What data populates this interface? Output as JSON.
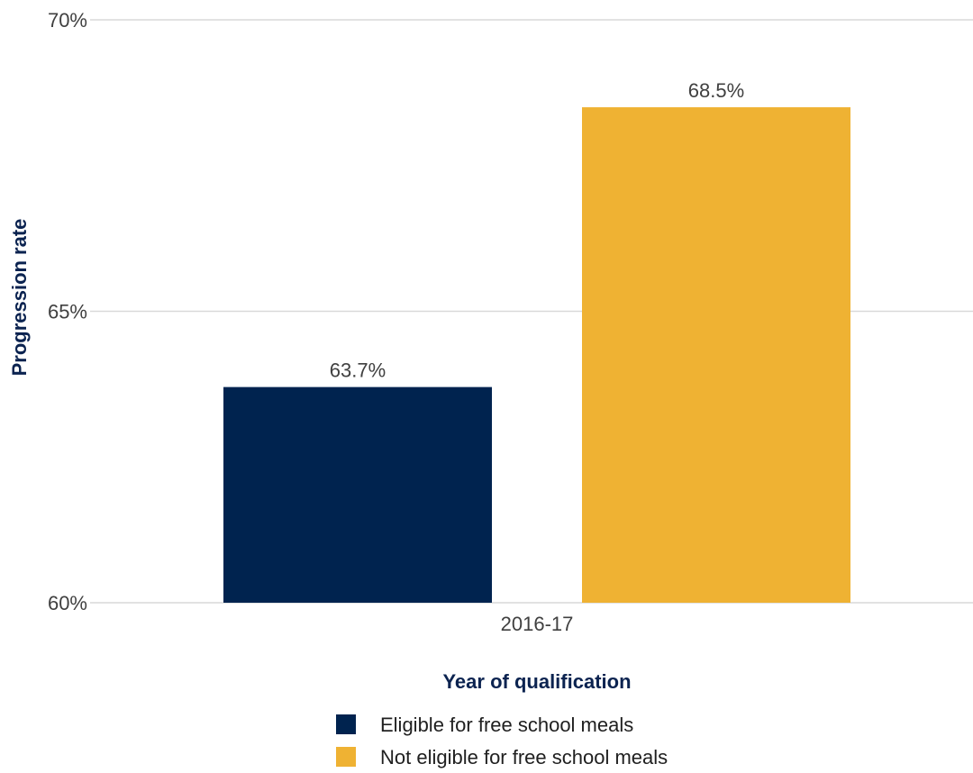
{
  "chart_data": {
    "type": "bar",
    "categories": [
      "2016-17"
    ],
    "series": [
      {
        "name": "Eligible for free school meals",
        "values": [
          63.7
        ],
        "color": "#00234f",
        "label": "63.7%"
      },
      {
        "name": "Not eligible for free school meals",
        "values": [
          68.5
        ],
        "color": "#efb233",
        "label": "68.5%"
      }
    ],
    "ylim": [
      60,
      70
    ],
    "yticks": [
      60,
      65,
      70
    ],
    "ytick_labels": [
      "60%",
      "65%",
      "70%"
    ],
    "xlabel": "Year of qualification",
    "ylabel": "Progression rate",
    "grid": true,
    "legend_position": "bottom",
    "gridline_color": "#d9d9d9",
    "axis_title_color": "#0b2350"
  }
}
